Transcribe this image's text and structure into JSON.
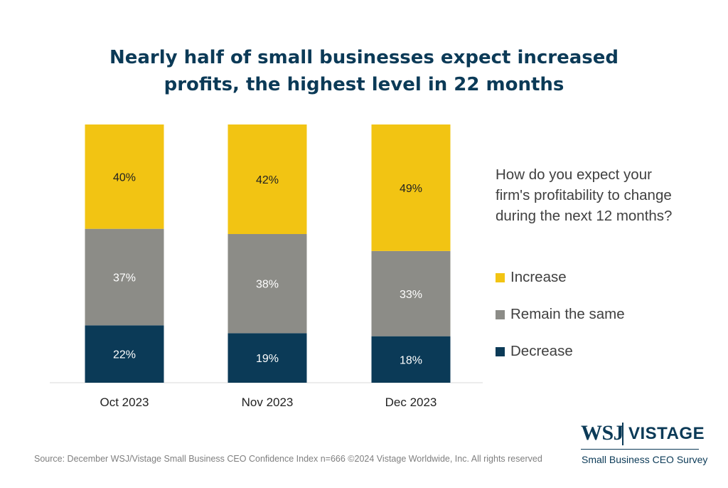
{
  "chart_data": {
    "type": "bar",
    "stacked": true,
    "title": "Nearly half of small businesses expect increased profits, the highest level in 22 months",
    "legend_title": "How do you expect your firm's profitability to change during the next 12 months?",
    "legend_position": "right",
    "categories": [
      "Oct 2023",
      "Nov 2023",
      "Dec 2023"
    ],
    "series": [
      {
        "name": "Decrease",
        "color": "#0b3a57",
        "values": [
          22,
          19,
          18
        ],
        "labels": [
          "22%",
          "19%",
          "18%"
        ],
        "label_color": "#ffffff"
      },
      {
        "name": "Remain the same",
        "color": "#8c8c87",
        "values": [
          37,
          38,
          33
        ],
        "labels": [
          "37%",
          "38%",
          "33%"
        ],
        "label_color": "#ffffff"
      },
      {
        "name": "Increase",
        "color": "#f2c413",
        "values": [
          40,
          42,
          49
        ],
        "labels": [
          "40%",
          "42%",
          "49%"
        ],
        "label_color": "#222222"
      }
    ],
    "legend_order": [
      "Increase",
      "Remain the same",
      "Decrease"
    ],
    "grid": false
  },
  "source": "Source: December WSJ/Vistage Small Business CEO Confidence Index n=666 ©2024 Vistage Worldwide, Inc. All rights reserved",
  "logo": {
    "wsj": "WSJ",
    "vistage": "VISTAGE",
    "subtitle": "Small Business CEO Survey"
  }
}
